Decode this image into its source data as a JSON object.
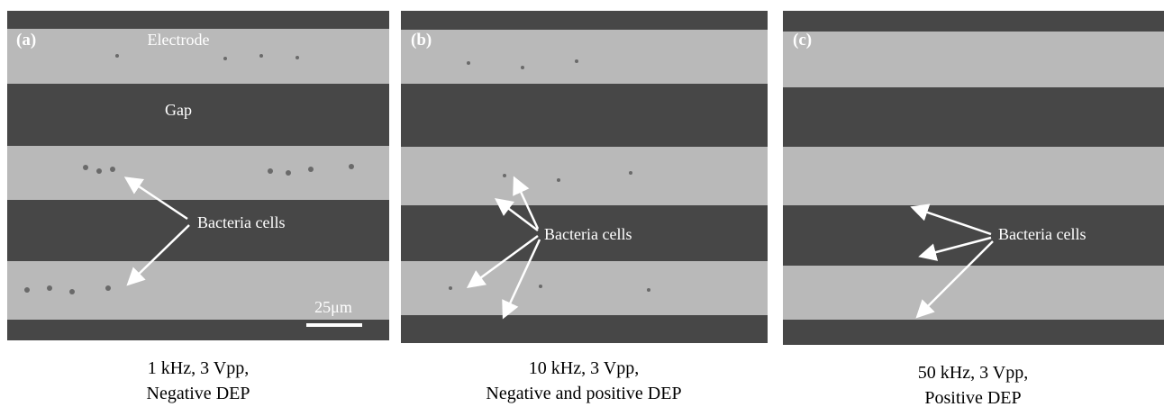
{
  "panels": [
    {
      "label": "(a)",
      "annotations": [
        "Electrode",
        "Gap",
        "Bacteria cells",
        "25μm"
      ],
      "caption": [
        "1 kHz, 3 Vpp,",
        "Negative DEP"
      ]
    },
    {
      "label": "(b)",
      "annotations": [
        "Bacteria cells"
      ],
      "caption": [
        "10 kHz, 3 Vpp,",
        "Negative and positive DEP"
      ]
    },
    {
      "label": "(c)",
      "annotations": [
        "Bacteria cells"
      ],
      "caption": [
        "50 kHz, 3 Vpp,",
        "Positive DEP"
      ]
    }
  ]
}
